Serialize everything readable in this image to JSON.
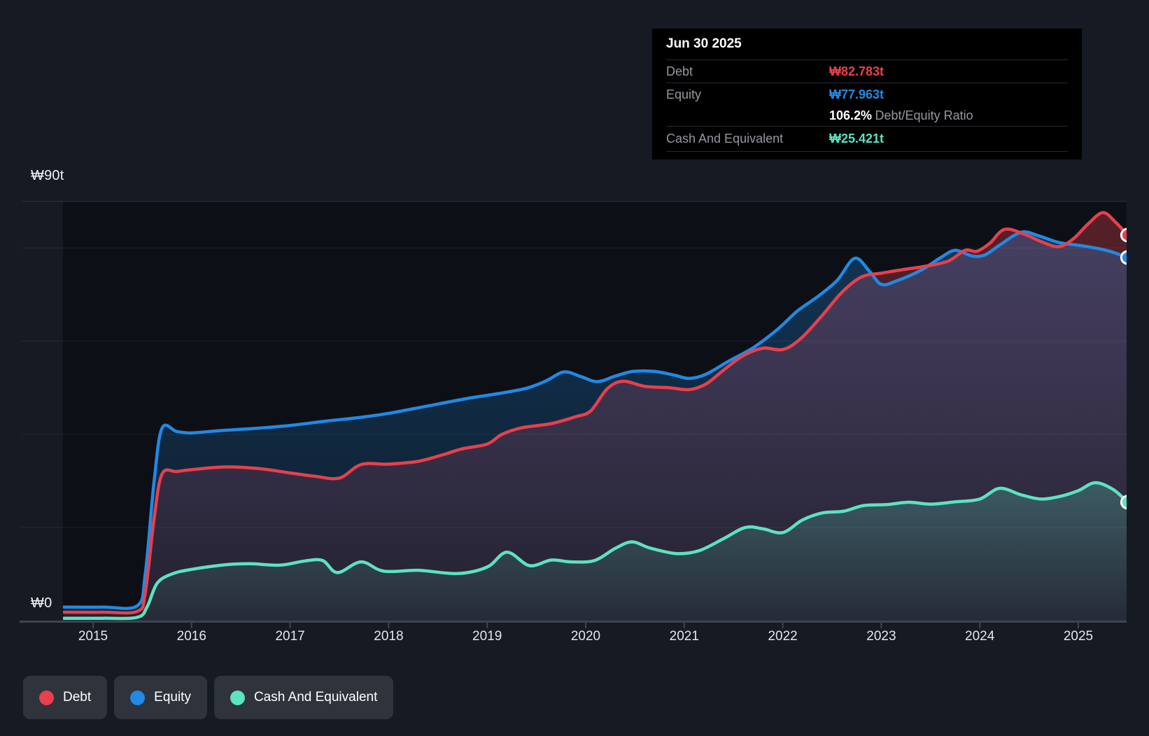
{
  "tooltip": {
    "date": "Jun 30 2025",
    "debt_label": "Debt",
    "debt_value": "₩82.783t",
    "equity_label": "Equity",
    "equity_value": "₩77.963t",
    "ratio_value": "106.2%",
    "ratio_label": "Debt/Equity Ratio",
    "cash_label": "Cash And Equivalent",
    "cash_value": "₩25.421t"
  },
  "legend": {
    "items": [
      {
        "label": "Debt",
        "color": "#e8404c"
      },
      {
        "label": "Equity",
        "color": "#2189e6"
      },
      {
        "label": "Cash And Equivalent",
        "color": "#5ce3c0"
      }
    ]
  },
  "chart_data": {
    "type": "area",
    "unit": "₩ trillion (t)",
    "x": {
      "min": 2014.7,
      "max": 2025.5,
      "tick_labels": [
        "2015",
        "2016",
        "2017",
        "2018",
        "2019",
        "2020",
        "2021",
        "2022",
        "2023",
        "2024",
        "2025"
      ]
    },
    "y": {
      "min": 0,
      "max": 90,
      "gridlines": [
        90,
        80,
        60,
        40,
        20
      ],
      "axis_labels": [
        {
          "text": "₩90t",
          "value": 90
        },
        {
          "text": "₩0",
          "value": 0
        }
      ]
    },
    "series": [
      {
        "name": "Debt",
        "color": "#e8404c",
        "end_value": 82.783,
        "points": [
          [
            2014.7,
            1.8
          ],
          [
            2015.1,
            1.8
          ],
          [
            2015.45,
            2.0
          ],
          [
            2015.53,
            6.0
          ],
          [
            2015.62,
            22.0
          ],
          [
            2015.7,
            31.5
          ],
          [
            2015.85,
            32.0
          ],
          [
            2016.0,
            32.4
          ],
          [
            2016.35,
            33.0
          ],
          [
            2016.7,
            32.6
          ],
          [
            2017.0,
            31.7
          ],
          [
            2017.25,
            31.0
          ],
          [
            2017.5,
            30.6
          ],
          [
            2017.72,
            33.5
          ],
          [
            2018.0,
            33.6
          ],
          [
            2018.3,
            34.2
          ],
          [
            2018.55,
            35.6
          ],
          [
            2018.75,
            36.9
          ],
          [
            2019.0,
            37.9
          ],
          [
            2019.15,
            40.0
          ],
          [
            2019.35,
            41.4
          ],
          [
            2019.65,
            42.3
          ],
          [
            2019.9,
            43.8
          ],
          [
            2020.05,
            45.0
          ],
          [
            2020.22,
            49.8
          ],
          [
            2020.38,
            51.4
          ],
          [
            2020.6,
            50.3
          ],
          [
            2020.85,
            50.0
          ],
          [
            2021.05,
            49.6
          ],
          [
            2021.22,
            50.8
          ],
          [
            2021.4,
            53.8
          ],
          [
            2021.6,
            56.9
          ],
          [
            2021.8,
            58.5
          ],
          [
            2022.0,
            58.2
          ],
          [
            2022.18,
            60.5
          ],
          [
            2022.4,
            65.5
          ],
          [
            2022.6,
            70.5
          ],
          [
            2022.8,
            73.8
          ],
          [
            2023.0,
            74.6
          ],
          [
            2023.2,
            75.3
          ],
          [
            2023.45,
            76.1
          ],
          [
            2023.68,
            77.2
          ],
          [
            2023.85,
            79.5
          ],
          [
            2023.97,
            79.3
          ],
          [
            2024.1,
            81.0
          ],
          [
            2024.25,
            84.0
          ],
          [
            2024.45,
            83.0
          ],
          [
            2024.62,
            81.4
          ],
          [
            2024.8,
            80.3
          ],
          [
            2024.95,
            82.0
          ],
          [
            2025.1,
            85.2
          ],
          [
            2025.25,
            87.6
          ],
          [
            2025.38,
            85.5
          ],
          [
            2025.5,
            82.783
          ]
        ]
      },
      {
        "name": "Equity",
        "color": "#2189e6",
        "end_value": 77.963,
        "points": [
          [
            2014.7,
            2.9
          ],
          [
            2015.1,
            2.9
          ],
          [
            2015.45,
            3.2
          ],
          [
            2015.53,
            10.0
          ],
          [
            2015.62,
            30.0
          ],
          [
            2015.7,
            41.3
          ],
          [
            2015.85,
            40.6
          ],
          [
            2016.0,
            40.3
          ],
          [
            2016.3,
            40.8
          ],
          [
            2016.6,
            41.2
          ],
          [
            2017.0,
            41.9
          ],
          [
            2017.35,
            42.8
          ],
          [
            2017.7,
            43.6
          ],
          [
            2018.0,
            44.5
          ],
          [
            2018.4,
            46.1
          ],
          [
            2018.8,
            47.7
          ],
          [
            2019.1,
            48.7
          ],
          [
            2019.4,
            49.9
          ],
          [
            2019.6,
            51.5
          ],
          [
            2019.78,
            53.4
          ],
          [
            2019.95,
            52.4
          ],
          [
            2020.12,
            51.3
          ],
          [
            2020.3,
            52.5
          ],
          [
            2020.48,
            53.5
          ],
          [
            2020.7,
            53.5
          ],
          [
            2020.9,
            52.7
          ],
          [
            2021.05,
            52.0
          ],
          [
            2021.22,
            52.9
          ],
          [
            2021.45,
            55.7
          ],
          [
            2021.7,
            58.6
          ],
          [
            2021.95,
            62.6
          ],
          [
            2022.15,
            66.5
          ],
          [
            2022.35,
            69.5
          ],
          [
            2022.55,
            73.0
          ],
          [
            2022.73,
            77.8
          ],
          [
            2022.88,
            75.0
          ],
          [
            2023.0,
            72.2
          ],
          [
            2023.15,
            72.9
          ],
          [
            2023.4,
            75.2
          ],
          [
            2023.6,
            77.9
          ],
          [
            2023.75,
            79.5
          ],
          [
            2023.92,
            78.3
          ],
          [
            2024.05,
            78.5
          ],
          [
            2024.2,
            80.6
          ],
          [
            2024.42,
            83.4
          ],
          [
            2024.6,
            82.6
          ],
          [
            2024.8,
            81.2
          ],
          [
            2025.0,
            80.6
          ],
          [
            2025.15,
            80.1
          ],
          [
            2025.32,
            79.3
          ],
          [
            2025.5,
            77.963
          ]
        ]
      },
      {
        "name": "Cash And Equivalent",
        "color": "#5ce3c0",
        "end_value": 25.421,
        "points": [
          [
            2014.7,
            0.5
          ],
          [
            2015.1,
            0.5
          ],
          [
            2015.45,
            0.7
          ],
          [
            2015.55,
            3.0
          ],
          [
            2015.65,
            8.0
          ],
          [
            2015.8,
            10.0
          ],
          [
            2016.0,
            11.0
          ],
          [
            2016.35,
            12.0
          ],
          [
            2016.6,
            12.2
          ],
          [
            2016.9,
            11.9
          ],
          [
            2017.15,
            12.8
          ],
          [
            2017.33,
            12.9
          ],
          [
            2017.48,
            10.3
          ],
          [
            2017.72,
            12.6
          ],
          [
            2017.95,
            10.6
          ],
          [
            2018.3,
            10.8
          ],
          [
            2018.7,
            10.1
          ],
          [
            2019.0,
            11.5
          ],
          [
            2019.2,
            14.7
          ],
          [
            2019.43,
            11.8
          ],
          [
            2019.65,
            13.0
          ],
          [
            2019.85,
            12.6
          ],
          [
            2020.09,
            12.9
          ],
          [
            2020.3,
            15.5
          ],
          [
            2020.47,
            16.9
          ],
          [
            2020.65,
            15.6
          ],
          [
            2020.92,
            14.4
          ],
          [
            2021.15,
            15.0
          ],
          [
            2021.4,
            17.6
          ],
          [
            2021.62,
            20.0
          ],
          [
            2021.8,
            19.7
          ],
          [
            2022.0,
            18.9
          ],
          [
            2022.2,
            21.6
          ],
          [
            2022.4,
            23.1
          ],
          [
            2022.62,
            23.5
          ],
          [
            2022.82,
            24.7
          ],
          [
            2023.05,
            24.9
          ],
          [
            2023.28,
            25.4
          ],
          [
            2023.5,
            25.0
          ],
          [
            2023.75,
            25.5
          ],
          [
            2024.0,
            26.1
          ],
          [
            2024.2,
            28.4
          ],
          [
            2024.42,
            27.0
          ],
          [
            2024.62,
            26.1
          ],
          [
            2024.82,
            26.7
          ],
          [
            2025.0,
            27.9
          ],
          [
            2025.17,
            29.6
          ],
          [
            2025.35,
            28.2
          ],
          [
            2025.5,
            25.421
          ]
        ]
      }
    ]
  }
}
